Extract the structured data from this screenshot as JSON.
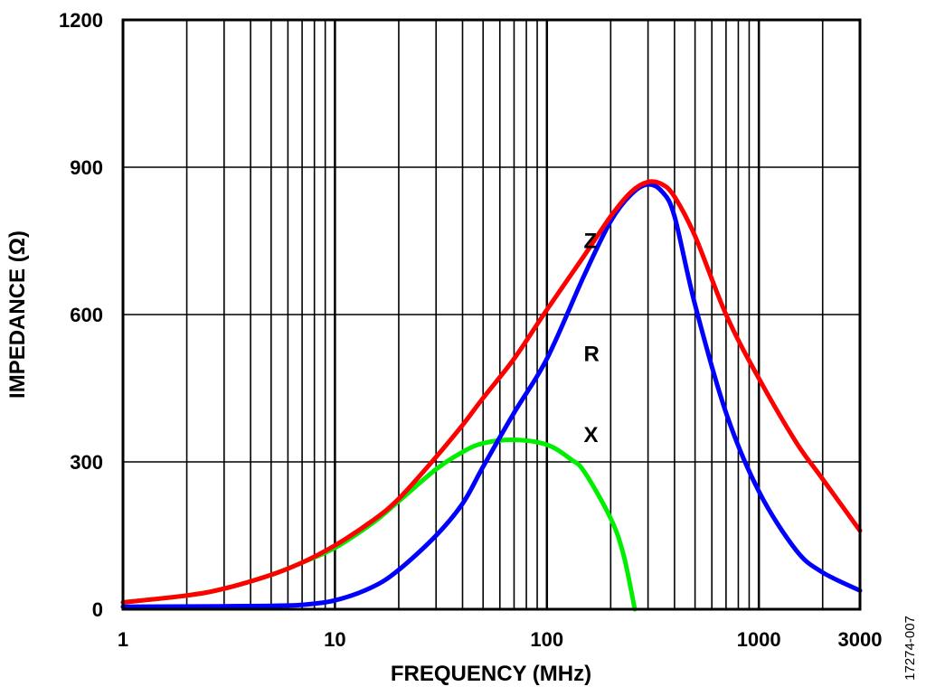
{
  "chart_data": {
    "type": "line",
    "xlabel": "FREQUENCY (MHz)",
    "ylabel": "IMPEDANCE (Ω)",
    "xscale": "log",
    "xlim": [
      1,
      3000
    ],
    "ylim": [
      0,
      1200
    ],
    "grid": true,
    "x_ticks": [
      {
        "value": 1,
        "label": "1"
      },
      {
        "value": 10,
        "label": "10"
      },
      {
        "value": 100,
        "label": "100"
      },
      {
        "value": 1000,
        "label": "1000"
      },
      {
        "value": 3000,
        "label": "3000"
      }
    ],
    "y_ticks": [
      {
        "value": 0,
        "label": "0"
      },
      {
        "value": 300,
        "label": "300"
      },
      {
        "value": 600,
        "label": "600"
      },
      {
        "value": 900,
        "label": "900"
      },
      {
        "value": 1200,
        "label": "1200"
      }
    ],
    "series": [
      {
        "name": "Z",
        "color": "#ff0000",
        "label_at": [
          130,
          750
        ],
        "points": [
          [
            1,
            14
          ],
          [
            2,
            28
          ],
          [
            3,
            42
          ],
          [
            5,
            70
          ],
          [
            7,
            95
          ],
          [
            10,
            130
          ],
          [
            15,
            180
          ],
          [
            20,
            225
          ],
          [
            30,
            310
          ],
          [
            40,
            375
          ],
          [
            50,
            430
          ],
          [
            70,
            510
          ],
          [
            100,
            610
          ],
          [
            150,
            720
          ],
          [
            200,
            800
          ],
          [
            250,
            850
          ],
          [
            300,
            870
          ],
          [
            350,
            865
          ],
          [
            400,
            840
          ],
          [
            500,
            760
          ],
          [
            700,
            600
          ],
          [
            1000,
            470
          ],
          [
            1500,
            340
          ],
          [
            2000,
            265
          ],
          [
            3000,
            160
          ]
        ]
      },
      {
        "name": "R",
        "color": "#0000ff",
        "label_at": [
          130,
          520
        ],
        "points": [
          [
            1,
            5
          ],
          [
            3,
            6
          ],
          [
            5,
            7
          ],
          [
            7,
            9
          ],
          [
            10,
            18
          ],
          [
            15,
            45
          ],
          [
            20,
            80
          ],
          [
            30,
            150
          ],
          [
            40,
            215
          ],
          [
            50,
            290
          ],
          [
            70,
            400
          ],
          [
            100,
            510
          ],
          [
            150,
            680
          ],
          [
            200,
            790
          ],
          [
            250,
            845
          ],
          [
            300,
            865
          ],
          [
            350,
            850
          ],
          [
            400,
            800
          ],
          [
            500,
            620
          ],
          [
            700,
            400
          ],
          [
            1000,
            240
          ],
          [
            1500,
            120
          ],
          [
            2000,
            75
          ],
          [
            3000,
            38
          ]
        ]
      },
      {
        "name": "X",
        "color": "#00ee00",
        "label_at": [
          130,
          355
        ],
        "points": [
          [
            1,
            14
          ],
          [
            2,
            28
          ],
          [
            3,
            42
          ],
          [
            5,
            70
          ],
          [
            7,
            95
          ],
          [
            10,
            125
          ],
          [
            15,
            175
          ],
          [
            20,
            220
          ],
          [
            30,
            285
          ],
          [
            40,
            320
          ],
          [
            50,
            338
          ],
          [
            70,
            345
          ],
          [
            100,
            335
          ],
          [
            130,
            305
          ],
          [
            150,
            280
          ],
          [
            200,
            185
          ],
          [
            230,
            110
          ],
          [
            260,
            0
          ]
        ]
      }
    ],
    "figure_id": "17274-007"
  }
}
